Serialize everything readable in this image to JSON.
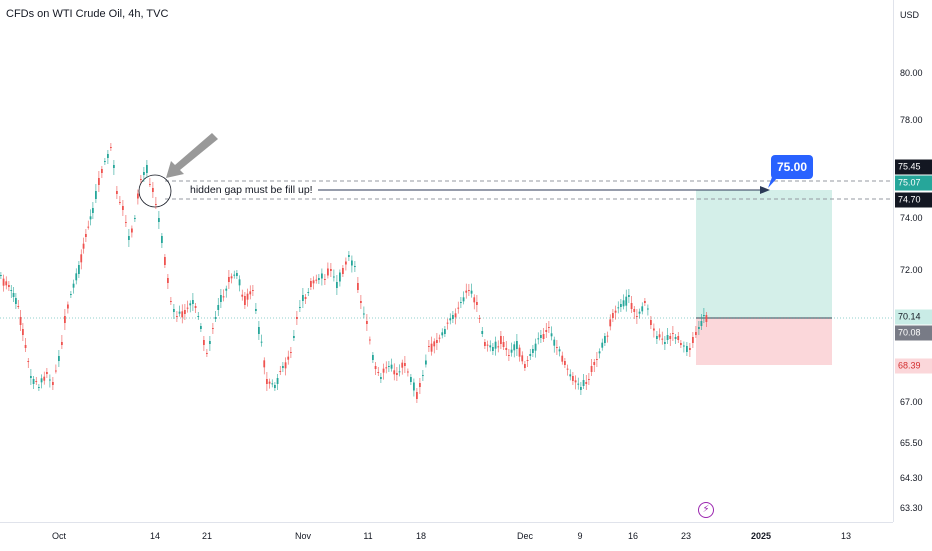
{
  "header": {
    "title": "CFDs on WTI Crude Oil, 4h, TVC"
  },
  "price_axis": {
    "currency": "USD",
    "ticks": [
      "80.00",
      "78.00",
      "74.00",
      "72.00",
      "67.00",
      "65.50",
      "64.30",
      "63.30"
    ],
    "tags": {
      "p7545": "75.45",
      "p7507": "75.07",
      "p7470": "74.70",
      "p7014": "70.14",
      "p7008": "70.08",
      "p6839": "68.39"
    }
  },
  "time_axis": {
    "labels": [
      "Oct",
      "14",
      "21",
      "Nov",
      "11",
      "18",
      "Dec",
      "9",
      "16",
      "23",
      "2025",
      "13"
    ]
  },
  "annotation": {
    "text": "hidden gap must be fill up!",
    "target": "75.00"
  },
  "colors": {
    "up": "#26a69a",
    "down": "#ef5350",
    "target_zone": "#d4efe9",
    "stop_zone": "#fbd7da",
    "accent": "#2962ff"
  },
  "icons": {
    "alert": "lightning-icon"
  }
}
